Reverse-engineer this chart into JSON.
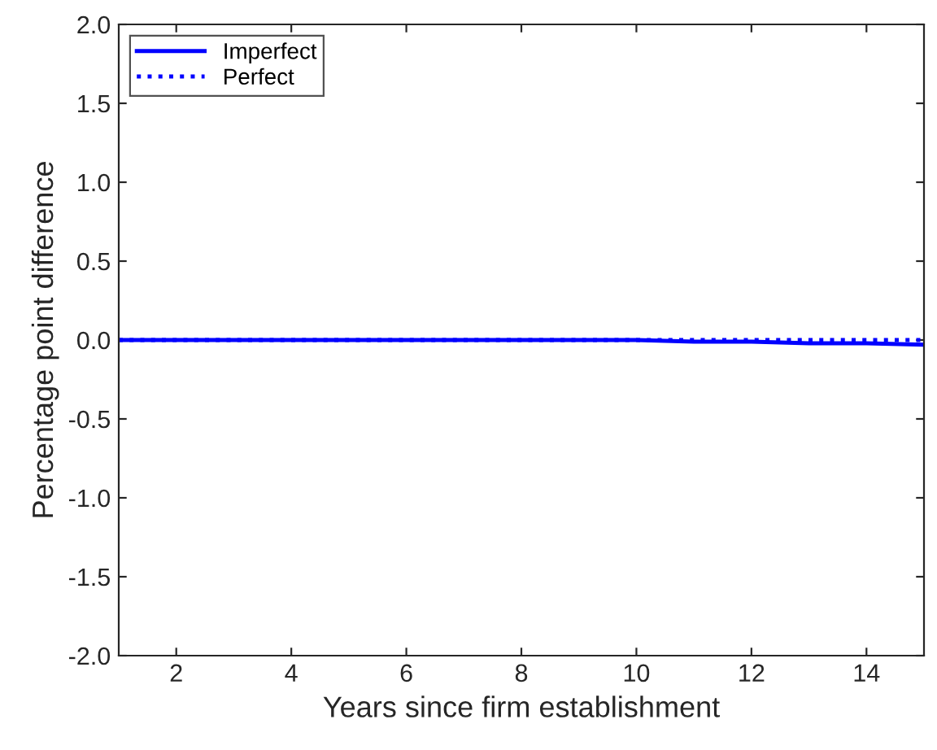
{
  "chart_data": {
    "type": "line",
    "xlabel": "Years since firm establishment",
    "ylabel": "Percentage point difference",
    "x": [
      1,
      2,
      3,
      4,
      5,
      6,
      7,
      8,
      9,
      10,
      11,
      12,
      13,
      14,
      15
    ],
    "series": [
      {
        "name": "Imperfect",
        "color": "#0000ff",
        "line_style": "solid",
        "values": [
          0,
          0,
          0,
          0,
          0,
          0,
          0,
          0,
          0,
          0,
          -0.01,
          -0.01,
          -0.02,
          -0.02,
          -0.03
        ]
      },
      {
        "name": "Perfect",
        "color": "#0000ff",
        "line_style": "dotted",
        "values": [
          0,
          0,
          0,
          0,
          0,
          0,
          0,
          0,
          0,
          0,
          0,
          0,
          0,
          0,
          0
        ]
      }
    ],
    "xlim": [
      1,
      15
    ],
    "xticks": [
      2,
      4,
      6,
      8,
      10,
      12,
      14
    ],
    "ylim": [
      -2,
      2
    ],
    "yticks": [
      {
        "value": -2,
        "label": "-2.0"
      },
      {
        "value": -1.5,
        "label": "-1.5"
      },
      {
        "value": -1,
        "label": "-1.0"
      },
      {
        "value": -0.5,
        "label": "-0.5"
      },
      {
        "value": 0,
        "label": "0.0"
      },
      {
        "value": 0.5,
        "label": "0.5"
      },
      {
        "value": 1,
        "label": "1.0"
      },
      {
        "value": 1.5,
        "label": "1.5"
      },
      {
        "value": 2,
        "label": "2.0"
      }
    ],
    "grid": false,
    "legend": "top left"
  }
}
